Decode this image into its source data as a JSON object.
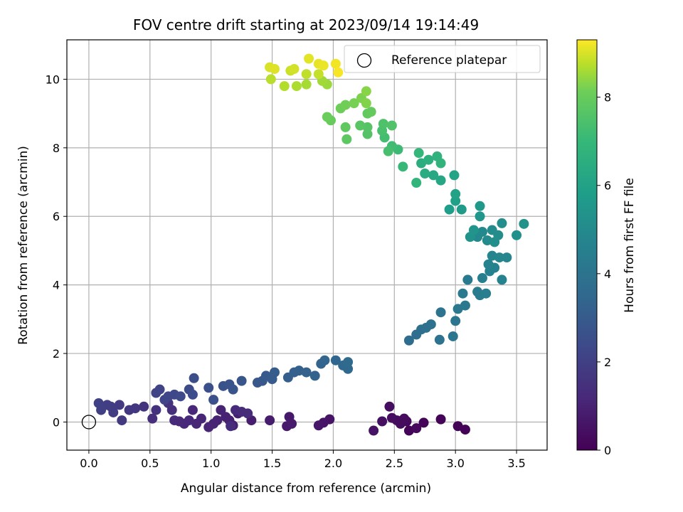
{
  "chart_data": {
    "type": "scatter",
    "title": "FOV centre drift starting at 2023/09/14 19:14:49",
    "xlabel": "Angular distance from reference (arcmin)",
    "ylabel": "Rotation from reference (arcmin)",
    "xlim": [
      -0.18,
      3.75
    ],
    "ylim": [
      -0.82,
      11.15
    ],
    "xticks": [
      "0.0",
      "0.5",
      "1.0",
      "1.5",
      "2.0",
      "2.5",
      "3.0",
      "3.5"
    ],
    "yticks": [
      "0",
      "2",
      "4",
      "6",
      "8",
      "10"
    ],
    "grid": true,
    "colormap": "viridis",
    "colorbar": {
      "label": "Hours from first FF file",
      "range": [
        0,
        9.3
      ],
      "ticks": [
        "0",
        "2",
        "4",
        "6",
        "8"
      ]
    },
    "legend": {
      "position": "top-right",
      "entries": [
        "Reference platepar"
      ]
    },
    "reference_point": {
      "x": 0.0,
      "y": 0.0
    },
    "series": [
      {
        "points": [
          {
            "x": 2.62,
            "y": -0.25,
            "t": 0.1
          },
          {
            "x": 2.55,
            "y": 0.0,
            "t": 0.15
          },
          {
            "x": 3.08,
            "y": -0.22,
            "t": 0.05
          },
          {
            "x": 3.02,
            "y": -0.12,
            "t": 0.08
          },
          {
            "x": 2.88,
            "y": 0.08,
            "t": 0.1
          },
          {
            "x": 2.74,
            "y": -0.02,
            "t": 0.12
          },
          {
            "x": 2.68,
            "y": -0.18,
            "t": 0.2
          },
          {
            "x": 2.6,
            "y": 0.02,
            "t": 0.25
          },
          {
            "x": 2.58,
            "y": 0.1,
            "t": 0.3
          },
          {
            "x": 2.52,
            "y": 0.05,
            "t": 0.35
          },
          {
            "x": 2.46,
            "y": 0.45,
            "t": 0.4
          },
          {
            "x": 2.4,
            "y": 0.02,
            "t": 0.45
          },
          {
            "x": 2.33,
            "y": -0.25,
            "t": 0.5
          },
          {
            "x": 2.48,
            "y": 0.12,
            "t": 0.38
          },
          {
            "x": 2.55,
            "y": -0.05,
            "t": 0.32
          },
          {
            "x": 1.97,
            "y": 0.08,
            "t": 0.55
          },
          {
            "x": 1.92,
            "y": -0.02,
            "t": 0.6
          },
          {
            "x": 1.88,
            "y": -0.1,
            "t": 0.65
          },
          {
            "x": 1.64,
            "y": 0.15,
            "t": 0.7
          },
          {
            "x": 1.62,
            "y": -0.12,
            "t": 0.72
          },
          {
            "x": 1.66,
            "y": -0.05,
            "t": 0.75
          },
          {
            "x": 1.48,
            "y": 0.05,
            "t": 0.8
          },
          {
            "x": 1.33,
            "y": 0.05,
            "t": 0.85
          },
          {
            "x": 1.22,
            "y": 0.25,
            "t": 0.9
          },
          {
            "x": 1.18,
            "y": -0.1,
            "t": 0.92
          },
          {
            "x": 1.15,
            "y": 0.05,
            "t": 0.95
          },
          {
            "x": 1.12,
            "y": 0.15,
            "t": 0.98
          },
          {
            "x": 1.08,
            "y": 0.35,
            "t": 1.0
          },
          {
            "x": 1.05,
            "y": 0.05,
            "t": 1.02
          },
          {
            "x": 1.02,
            "y": -0.05,
            "t": 1.05
          },
          {
            "x": 0.98,
            "y": -0.15,
            "t": 1.08
          },
          {
            "x": 0.92,
            "y": 0.1,
            "t": 1.1
          },
          {
            "x": 0.88,
            "y": -0.05,
            "t": 1.12
          },
          {
            "x": 0.85,
            "y": 0.35,
            "t": 1.15
          },
          {
            "x": 0.82,
            "y": 0.05,
            "t": 1.18
          },
          {
            "x": 0.78,
            "y": -0.05,
            "t": 1.2
          },
          {
            "x": 0.74,
            "y": 0.02,
            "t": 1.22
          },
          {
            "x": 0.7,
            "y": 0.05,
            "t": 1.25
          },
          {
            "x": 1.2,
            "y": 0.35,
            "t": 1.28
          },
          {
            "x": 1.25,
            "y": 0.3,
            "t": 1.3
          },
          {
            "x": 1.3,
            "y": 0.25,
            "t": 1.32
          },
          {
            "x": 1.16,
            "y": -0.12,
            "t": 1.35
          },
          {
            "x": 0.68,
            "y": 0.35,
            "t": 1.4
          },
          {
            "x": 0.52,
            "y": 0.1,
            "t": 1.45
          },
          {
            "x": 0.55,
            "y": 0.35,
            "t": 1.5
          },
          {
            "x": 0.65,
            "y": 0.55,
            "t": 1.55
          },
          {
            "x": 0.45,
            "y": 0.45,
            "t": 1.6
          },
          {
            "x": 0.38,
            "y": 0.4,
            "t": 1.65
          },
          {
            "x": 0.33,
            "y": 0.35,
            "t": 1.7
          },
          {
            "x": 0.27,
            "y": 0.05,
            "t": 1.75
          },
          {
            "x": 0.25,
            "y": 0.5,
            "t": 1.8
          },
          {
            "x": 0.2,
            "y": 0.28,
            "t": 1.85
          },
          {
            "x": 0.18,
            "y": 0.45,
            "t": 1.9
          },
          {
            "x": 0.15,
            "y": 0.5,
            "t": 1.95
          },
          {
            "x": 0.1,
            "y": 0.35,
            "t": 2.0
          },
          {
            "x": 0.08,
            "y": 0.55,
            "t": 2.05
          },
          {
            "x": 0.55,
            "y": 0.85,
            "t": 2.1
          },
          {
            "x": 0.58,
            "y": 0.95,
            "t": 2.15
          },
          {
            "x": 0.62,
            "y": 0.65,
            "t": 2.2
          },
          {
            "x": 0.65,
            "y": 0.75,
            "t": 2.25
          },
          {
            "x": 0.7,
            "y": 0.8,
            "t": 2.3
          },
          {
            "x": 0.75,
            "y": 0.75,
            "t": 2.35
          },
          {
            "x": 0.82,
            "y": 0.95,
            "t": 2.4
          },
          {
            "x": 0.85,
            "y": 0.8,
            "t": 2.45
          },
          {
            "x": 0.86,
            "y": 1.28,
            "t": 2.5
          },
          {
            "x": 0.98,
            "y": 1.0,
            "t": 2.55
          },
          {
            "x": 1.02,
            "y": 0.65,
            "t": 2.6
          },
          {
            "x": 1.1,
            "y": 1.05,
            "t": 2.65
          },
          {
            "x": 1.15,
            "y": 1.1,
            "t": 2.7
          },
          {
            "x": 1.18,
            "y": 0.95,
            "t": 2.75
          },
          {
            "x": 1.25,
            "y": 1.2,
            "t": 2.8
          },
          {
            "x": 1.38,
            "y": 1.15,
            "t": 2.85
          },
          {
            "x": 1.42,
            "y": 1.2,
            "t": 2.9
          },
          {
            "x": 1.45,
            "y": 1.35,
            "t": 2.95
          },
          {
            "x": 1.5,
            "y": 1.25,
            "t": 3.0
          },
          {
            "x": 1.52,
            "y": 1.45,
            "t": 3.05
          },
          {
            "x": 1.63,
            "y": 1.3,
            "t": 3.1
          },
          {
            "x": 1.68,
            "y": 1.45,
            "t": 3.15
          },
          {
            "x": 1.72,
            "y": 1.5,
            "t": 3.2
          },
          {
            "x": 1.78,
            "y": 1.45,
            "t": 3.25
          },
          {
            "x": 1.85,
            "y": 1.35,
            "t": 3.3
          },
          {
            "x": 1.9,
            "y": 1.7,
            "t": 3.35
          },
          {
            "x": 1.93,
            "y": 1.8,
            "t": 3.4
          },
          {
            "x": 2.02,
            "y": 1.8,
            "t": 3.45
          },
          {
            "x": 2.08,
            "y": 1.65,
            "t": 3.5
          },
          {
            "x": 2.12,
            "y": 1.55,
            "t": 3.55
          },
          {
            "x": 2.12,
            "y": 1.75,
            "t": 3.6
          },
          {
            "x": 2.62,
            "y": 2.38,
            "t": 3.7
          },
          {
            "x": 2.68,
            "y": 2.55,
            "t": 3.75
          },
          {
            "x": 2.72,
            "y": 2.7,
            "t": 3.8
          },
          {
            "x": 2.76,
            "y": 2.75,
            "t": 3.85
          },
          {
            "x": 2.8,
            "y": 2.85,
            "t": 3.9
          },
          {
            "x": 2.87,
            "y": 2.4,
            "t": 3.95
          },
          {
            "x": 2.88,
            "y": 3.2,
            "t": 4.0
          },
          {
            "x": 2.98,
            "y": 2.5,
            "t": 4.05
          },
          {
            "x": 3.0,
            "y": 2.95,
            "t": 4.1
          },
          {
            "x": 3.02,
            "y": 3.3,
            "t": 4.15
          },
          {
            "x": 3.08,
            "y": 3.4,
            "t": 4.2
          },
          {
            "x": 3.06,
            "y": 3.75,
            "t": 4.25
          },
          {
            "x": 3.1,
            "y": 4.15,
            "t": 4.3
          },
          {
            "x": 3.18,
            "y": 3.8,
            "t": 4.35
          },
          {
            "x": 3.2,
            "y": 3.7,
            "t": 4.4
          },
          {
            "x": 3.25,
            "y": 3.75,
            "t": 4.45
          },
          {
            "x": 3.22,
            "y": 4.2,
            "t": 4.5
          },
          {
            "x": 3.28,
            "y": 4.4,
            "t": 4.55
          },
          {
            "x": 3.32,
            "y": 4.5,
            "t": 4.6
          },
          {
            "x": 3.38,
            "y": 4.15,
            "t": 4.65
          },
          {
            "x": 3.27,
            "y": 4.6,
            "t": 4.7
          },
          {
            "x": 3.3,
            "y": 4.85,
            "t": 4.75
          },
          {
            "x": 3.36,
            "y": 4.8,
            "t": 4.8
          },
          {
            "x": 3.42,
            "y": 4.8,
            "t": 4.85
          },
          {
            "x": 3.18,
            "y": 5.4,
            "t": 4.9
          },
          {
            "x": 3.22,
            "y": 5.55,
            "t": 4.95
          },
          {
            "x": 3.26,
            "y": 5.3,
            "t": 5.0
          },
          {
            "x": 3.3,
            "y": 5.6,
            "t": 5.05
          },
          {
            "x": 3.35,
            "y": 5.45,
            "t": 5.1
          },
          {
            "x": 3.38,
            "y": 5.8,
            "t": 5.15
          },
          {
            "x": 3.32,
            "y": 5.25,
            "t": 5.2
          },
          {
            "x": 3.5,
            "y": 5.45,
            "t": 5.25
          },
          {
            "x": 3.56,
            "y": 5.78,
            "t": 5.3
          },
          {
            "x": 3.12,
            "y": 5.4,
            "t": 5.35
          },
          {
            "x": 3.15,
            "y": 5.6,
            "t": 5.4
          },
          {
            "x": 3.2,
            "y": 6.0,
            "t": 5.5
          },
          {
            "x": 3.2,
            "y": 6.3,
            "t": 5.6
          },
          {
            "x": 3.05,
            "y": 6.2,
            "t": 5.7
          },
          {
            "x": 2.95,
            "y": 6.2,
            "t": 5.8
          },
          {
            "x": 3.0,
            "y": 6.45,
            "t": 5.9
          },
          {
            "x": 3.0,
            "y": 6.65,
            "t": 6.0
          },
          {
            "x": 2.99,
            "y": 7.2,
            "t": 6.1
          },
          {
            "x": 2.88,
            "y": 7.05,
            "t": 6.2
          },
          {
            "x": 2.82,
            "y": 7.2,
            "t": 6.3
          },
          {
            "x": 2.75,
            "y": 7.25,
            "t": 6.4
          },
          {
            "x": 2.72,
            "y": 7.55,
            "t": 6.5
          },
          {
            "x": 2.78,
            "y": 7.65,
            "t": 6.6
          },
          {
            "x": 2.85,
            "y": 7.75,
            "t": 6.7
          },
          {
            "x": 2.88,
            "y": 7.55,
            "t": 6.8
          },
          {
            "x": 2.68,
            "y": 6.98,
            "t": 6.85
          },
          {
            "x": 2.7,
            "y": 7.85,
            "t": 6.9
          },
          {
            "x": 2.57,
            "y": 7.45,
            "t": 7.0
          },
          {
            "x": 2.53,
            "y": 7.95,
            "t": 7.1
          },
          {
            "x": 2.48,
            "y": 8.05,
            "t": 7.2
          },
          {
            "x": 2.42,
            "y": 8.3,
            "t": 7.3
          },
          {
            "x": 2.45,
            "y": 7.9,
            "t": 7.35
          },
          {
            "x": 2.4,
            "y": 8.5,
            "t": 7.4
          },
          {
            "x": 2.41,
            "y": 8.7,
            "t": 7.5
          },
          {
            "x": 2.48,
            "y": 8.65,
            "t": 7.55
          },
          {
            "x": 2.28,
            "y": 8.4,
            "t": 7.6
          },
          {
            "x": 2.28,
            "y": 8.6,
            "t": 7.65
          },
          {
            "x": 2.22,
            "y": 8.65,
            "t": 7.7
          },
          {
            "x": 2.11,
            "y": 8.25,
            "t": 7.8
          },
          {
            "x": 2.1,
            "y": 8.6,
            "t": 7.85
          },
          {
            "x": 2.28,
            "y": 9.0,
            "t": 7.9
          },
          {
            "x": 2.31,
            "y": 9.05,
            "t": 7.95
          },
          {
            "x": 1.98,
            "y": 8.8,
            "t": 8.0
          },
          {
            "x": 1.95,
            "y": 8.9,
            "t": 8.05
          },
          {
            "x": 2.06,
            "y": 9.15,
            "t": 8.1
          },
          {
            "x": 2.1,
            "y": 9.25,
            "t": 8.15
          },
          {
            "x": 2.17,
            "y": 9.3,
            "t": 8.2
          },
          {
            "x": 2.23,
            "y": 9.45,
            "t": 8.25
          },
          {
            "x": 2.27,
            "y": 9.3,
            "t": 8.3
          },
          {
            "x": 2.27,
            "y": 9.65,
            "t": 8.35
          },
          {
            "x": 1.95,
            "y": 9.85,
            "t": 8.5
          },
          {
            "x": 1.91,
            "y": 9.95,
            "t": 8.55
          },
          {
            "x": 1.78,
            "y": 9.85,
            "t": 8.6
          },
          {
            "x": 1.7,
            "y": 9.8,
            "t": 8.65
          },
          {
            "x": 1.6,
            "y": 9.8,
            "t": 8.7
          },
          {
            "x": 1.49,
            "y": 10.0,
            "t": 8.75
          },
          {
            "x": 1.78,
            "y": 10.15,
            "t": 8.8
          },
          {
            "x": 1.88,
            "y": 10.15,
            "t": 8.85
          },
          {
            "x": 1.65,
            "y": 10.25,
            "t": 8.9
          },
          {
            "x": 1.68,
            "y": 10.3,
            "t": 8.95
          },
          {
            "x": 1.48,
            "y": 10.35,
            "t": 9.0
          },
          {
            "x": 1.52,
            "y": 10.3,
            "t": 9.05
          },
          {
            "x": 1.8,
            "y": 10.6,
            "t": 9.1
          },
          {
            "x": 1.88,
            "y": 10.45,
            "t": 9.12
          },
          {
            "x": 1.92,
            "y": 10.4,
            "t": 9.15
          },
          {
            "x": 2.02,
            "y": 10.45,
            "t": 9.2
          },
          {
            "x": 2.04,
            "y": 10.2,
            "t": 9.25
          }
        ]
      }
    ]
  }
}
